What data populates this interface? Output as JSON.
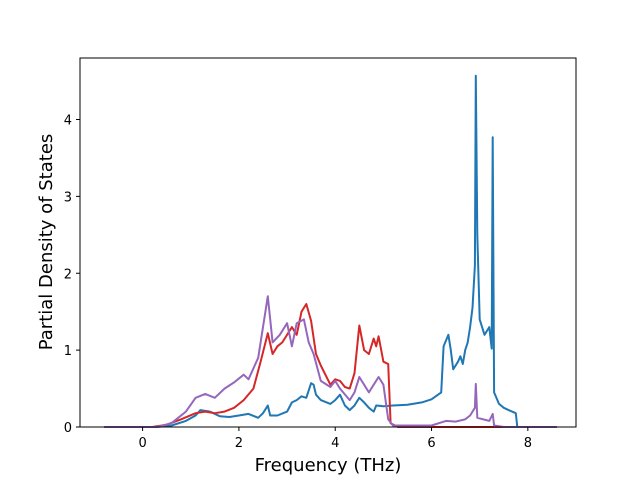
{
  "chart_data": {
    "type": "line",
    "title": "",
    "xlabel": "Frequency (THz)",
    "ylabel": "Partial Density of States",
    "xlim": [
      -1.3,
      9.0
    ],
    "ylim": [
      0,
      4.8
    ],
    "xticks": [
      0,
      2,
      4,
      6,
      8
    ],
    "yticks": [
      0,
      1,
      2,
      3,
      4
    ],
    "grid": false,
    "legend": "none",
    "series": [
      {
        "color": "#1f77b4",
        "points": [
          [
            -0.8,
            0
          ],
          [
            0.3,
            0
          ],
          [
            0.6,
            0.02
          ],
          [
            0.9,
            0.08
          ],
          [
            1.1,
            0.15
          ],
          [
            1.2,
            0.22
          ],
          [
            1.4,
            0.2
          ],
          [
            1.6,
            0.14
          ],
          [
            1.8,
            0.13
          ],
          [
            2.0,
            0.15
          ],
          [
            2.2,
            0.17
          ],
          [
            2.4,
            0.12
          ],
          [
            2.5,
            0.18
          ],
          [
            2.6,
            0.28
          ],
          [
            2.65,
            0.15
          ],
          [
            2.8,
            0.15
          ],
          [
            3.0,
            0.2
          ],
          [
            3.1,
            0.32
          ],
          [
            3.2,
            0.35
          ],
          [
            3.3,
            0.4
          ],
          [
            3.4,
            0.38
          ],
          [
            3.5,
            0.57
          ],
          [
            3.55,
            0.55
          ],
          [
            3.6,
            0.42
          ],
          [
            3.7,
            0.35
          ],
          [
            3.9,
            0.3
          ],
          [
            4.0,
            0.35
          ],
          [
            4.1,
            0.42
          ],
          [
            4.2,
            0.28
          ],
          [
            4.3,
            0.22
          ],
          [
            4.4,
            0.28
          ],
          [
            4.5,
            0.38
          ],
          [
            4.6,
            0.32
          ],
          [
            4.7,
            0.25
          ],
          [
            4.8,
            0.2
          ],
          [
            4.85,
            0.28
          ],
          [
            5.0,
            0.27
          ],
          [
            5.2,
            0.28
          ],
          [
            5.5,
            0.29
          ],
          [
            5.8,
            0.32
          ],
          [
            6.0,
            0.36
          ],
          [
            6.2,
            0.45
          ],
          [
            6.25,
            1.05
          ],
          [
            6.35,
            1.2
          ],
          [
            6.4,
            1.0
          ],
          [
            6.45,
            0.75
          ],
          [
            6.55,
            0.85
          ],
          [
            6.6,
            0.92
          ],
          [
            6.65,
            0.82
          ],
          [
            6.7,
            1.0
          ],
          [
            6.75,
            1.1
          ],
          [
            6.8,
            1.3
          ],
          [
            6.85,
            1.55
          ],
          [
            6.9,
            2.1
          ],
          [
            6.92,
            4.57
          ],
          [
            6.95,
            2.5
          ],
          [
            7.0,
            1.4
          ],
          [
            7.1,
            1.2
          ],
          [
            7.2,
            1.3
          ],
          [
            7.25,
            1.02
          ],
          [
            7.27,
            3.77
          ],
          [
            7.3,
            0.45
          ],
          [
            7.4,
            0.3
          ],
          [
            7.5,
            0.25
          ],
          [
            7.6,
            0.22
          ],
          [
            7.75,
            0.18
          ],
          [
            7.78,
            0.0
          ],
          [
            8.6,
            0
          ]
        ]
      },
      {
        "color": "#d62728",
        "points": [
          [
            -0.8,
            0
          ],
          [
            0.2,
            0
          ],
          [
            0.5,
            0.03
          ],
          [
            0.8,
            0.1
          ],
          [
            1.1,
            0.18
          ],
          [
            1.3,
            0.2
          ],
          [
            1.5,
            0.18
          ],
          [
            1.7,
            0.2
          ],
          [
            1.9,
            0.25
          ],
          [
            2.1,
            0.35
          ],
          [
            2.3,
            0.5
          ],
          [
            2.45,
            0.85
          ],
          [
            2.6,
            1.22
          ],
          [
            2.7,
            0.95
          ],
          [
            2.8,
            1.05
          ],
          [
            2.9,
            1.1
          ],
          [
            3.1,
            1.3
          ],
          [
            3.2,
            1.2
          ],
          [
            3.3,
            1.5
          ],
          [
            3.4,
            1.6
          ],
          [
            3.5,
            1.38
          ],
          [
            3.6,
            0.95
          ],
          [
            3.7,
            0.8
          ],
          [
            3.9,
            0.55
          ],
          [
            4.0,
            0.62
          ],
          [
            4.1,
            0.6
          ],
          [
            4.2,
            0.52
          ],
          [
            4.3,
            0.5
          ],
          [
            4.4,
            0.7
          ],
          [
            4.5,
            1.32
          ],
          [
            4.6,
            1.0
          ],
          [
            4.7,
            0.95
          ],
          [
            4.8,
            1.15
          ],
          [
            4.85,
            1.05
          ],
          [
            4.9,
            1.18
          ],
          [
            5.0,
            0.85
          ],
          [
            5.1,
            0.82
          ],
          [
            5.15,
            0.05
          ],
          [
            5.3,
            0.0
          ],
          [
            8.6,
            0
          ]
        ]
      },
      {
        "color": "#9467bd",
        "points": [
          [
            -0.8,
            0
          ],
          [
            0.3,
            0
          ],
          [
            0.6,
            0.05
          ],
          [
            0.9,
            0.2
          ],
          [
            1.1,
            0.38
          ],
          [
            1.3,
            0.43
          ],
          [
            1.5,
            0.38
          ],
          [
            1.7,
            0.5
          ],
          [
            1.9,
            0.58
          ],
          [
            2.1,
            0.68
          ],
          [
            2.2,
            0.62
          ],
          [
            2.4,
            0.9
          ],
          [
            2.6,
            1.7
          ],
          [
            2.7,
            1.1
          ],
          [
            2.85,
            1.2
          ],
          [
            3.0,
            1.35
          ],
          [
            3.1,
            1.05
          ],
          [
            3.2,
            1.35
          ],
          [
            3.35,
            1.4
          ],
          [
            3.45,
            1.1
          ],
          [
            3.55,
            0.95
          ],
          [
            3.7,
            0.6
          ],
          [
            3.9,
            0.52
          ],
          [
            4.0,
            0.6
          ],
          [
            4.1,
            0.5
          ],
          [
            4.3,
            0.35
          ],
          [
            4.4,
            0.45
          ],
          [
            4.5,
            0.65
          ],
          [
            4.6,
            0.55
          ],
          [
            4.7,
            0.45
          ],
          [
            4.8,
            0.55
          ],
          [
            4.9,
            0.65
          ],
          [
            5.0,
            0.55
          ],
          [
            5.1,
            0.1
          ],
          [
            5.2,
            0.02
          ],
          [
            6.0,
            0.02
          ],
          [
            6.3,
            0.08
          ],
          [
            6.5,
            0.07
          ],
          [
            6.7,
            0.1
          ],
          [
            6.8,
            0.15
          ],
          [
            6.9,
            0.25
          ],
          [
            6.92,
            0.56
          ],
          [
            6.95,
            0.12
          ],
          [
            7.2,
            0.08
          ],
          [
            7.27,
            0.17
          ],
          [
            7.3,
            0.02
          ],
          [
            7.5,
            0.0
          ],
          [
            8.6,
            0
          ]
        ]
      }
    ]
  }
}
